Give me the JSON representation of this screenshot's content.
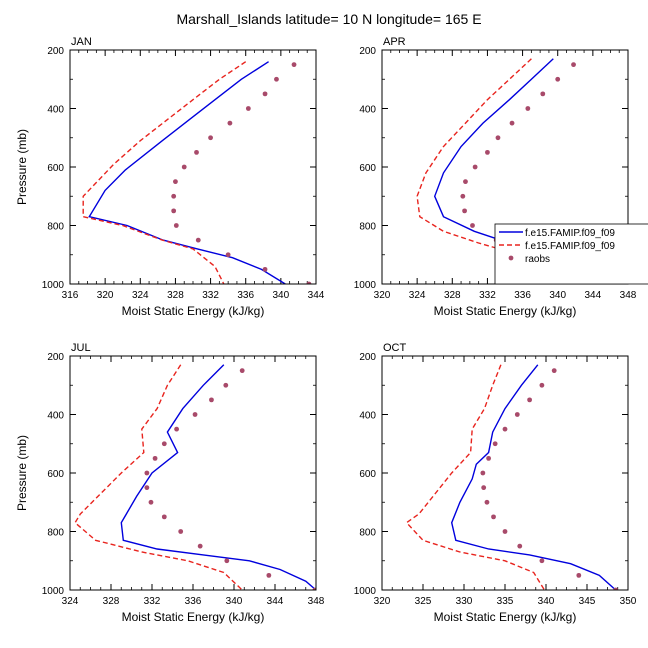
{
  "figure": {
    "title": "Marshall_Islands  latitude= 10 N longitude= 165 E"
  },
  "legend": {
    "entries": [
      {
        "label": "f.e15.FAMIP.f09_f09",
        "style": "solid",
        "color": "#0000dd"
      },
      {
        "label": "f.e15.FAMIP.f09_f09",
        "style": "dashed",
        "color": "#e8241e"
      },
      {
        "label": "raobs",
        "style": "dots",
        "color": "#a84a6a"
      }
    ]
  },
  "chart_data": [
    {
      "type": "line",
      "panel": "JAN",
      "title": "JAN",
      "xlabel": "Moist Static Energy (kJ/kg)",
      "ylabel": "Pressure (mb)",
      "xlim": [
        316,
        344
      ],
      "xticks": [
        316,
        320,
        324,
        328,
        332,
        336,
        340,
        344
      ],
      "ylim": [
        1000,
        200
      ],
      "yticks": [
        200,
        400,
        600,
        800,
        1000
      ],
      "series": [
        {
          "name": "f.e15.FAMIP.f09_f09",
          "style": "solid",
          "color": "#0000dd",
          "x": [
            338.6,
            335.5,
            332.5,
            329.5,
            326.5,
            322.3,
            320.0,
            318.2,
            322.5,
            326.6,
            330.5,
            334.5,
            337.8,
            340.5
          ],
          "y": [
            240,
            300,
            370,
            440,
            510,
            610,
            680,
            770,
            800,
            850,
            880,
            910,
            950,
            1000
          ]
        },
        {
          "name": "f.e15.FAMIP.f09_f09",
          "style": "dashed",
          "color": "#e8241e",
          "x": [
            336.0,
            333.0,
            330.0,
            327.0,
            324.0,
            321.0,
            317.5,
            317.5,
            322.0,
            326.5,
            330.0,
            332.5,
            333.5
          ],
          "y": [
            240,
            300,
            370,
            440,
            510,
            590,
            700,
            770,
            800,
            850,
            880,
            940,
            1000
          ]
        },
        {
          "name": "raobs",
          "style": "dots",
          "color": "#a84a6a",
          "x": [
            341.5,
            339.5,
            338.2,
            336.3,
            334.2,
            332.0,
            330.4,
            329.0,
            328.0,
            327.8,
            327.8,
            328.1,
            330.6,
            334.0,
            338.2,
            343.2
          ],
          "y": [
            250,
            300,
            350,
            400,
            450,
            500,
            550,
            600,
            650,
            700,
            750,
            800,
            850,
            900,
            950,
            1000
          ]
        }
      ]
    },
    {
      "type": "line",
      "panel": "APR",
      "title": "APR",
      "xlabel": "Moist Static Energy (kJ/kg)",
      "ylabel": "",
      "xlim": [
        320,
        348
      ],
      "xticks": [
        320,
        324,
        328,
        332,
        336,
        340,
        344,
        348
      ],
      "ylim": [
        1000,
        200
      ],
      "yticks": [
        200,
        400,
        600,
        800,
        1000
      ],
      "series": [
        {
          "name": "f.e15.FAMIP.f09_f09",
          "style": "solid",
          "color": "#0000dd",
          "x": [
            339.5,
            337.0,
            334.5,
            331.5,
            329.0,
            327.0,
            326.0,
            327.0,
            330.5,
            334.5,
            338.5,
            341.5,
            344.0
          ],
          "y": [
            230,
            300,
            370,
            450,
            530,
            620,
            700,
            770,
            820,
            860,
            890,
            930,
            1000
          ]
        },
        {
          "name": "f.e15.FAMIP.f09_f09",
          "style": "dashed",
          "color": "#e8241e",
          "x": [
            337.0,
            334.5,
            332.0,
            329.5,
            327.0,
            325.0,
            324.0,
            324.3,
            327.0,
            331.0,
            334.5,
            336.5,
            337.5
          ],
          "y": [
            230,
            300,
            370,
            450,
            530,
            620,
            700,
            770,
            820,
            860,
            890,
            940,
            1000
          ]
        },
        {
          "name": "raobs",
          "style": "dots",
          "color": "#a84a6a",
          "x": [
            341.8,
            340.0,
            338.3,
            336.6,
            334.8,
            333.2,
            332.0,
            330.6,
            329.5,
            329.2,
            329.4,
            330.3,
            333.0,
            337.0,
            340.5,
            345.0
          ],
          "y": [
            250,
            300,
            350,
            400,
            450,
            500,
            550,
            600,
            650,
            700,
            750,
            800,
            850,
            900,
            950,
            1000
          ]
        }
      ]
    },
    {
      "type": "line",
      "panel": "JUL",
      "title": "JUL",
      "xlabel": "Moist Static Energy (kJ/kg)",
      "ylabel": "Pressure (mb)",
      "xlim": [
        324,
        348
      ],
      "xticks": [
        324,
        328,
        332,
        336,
        340,
        344,
        348
      ],
      "ylim": [
        1000,
        200
      ],
      "yticks": [
        200,
        400,
        600,
        800,
        1000
      ],
      "series": [
        {
          "name": "f.e15.FAMIP.f09_f09",
          "style": "solid",
          "color": "#0000dd",
          "x": [
            339.0,
            337.0,
            335.0,
            333.5,
            334.5,
            332.0,
            330.5,
            329.0,
            329.2,
            332.5,
            337.0,
            341.5,
            344.5,
            347.0,
            348.0
          ],
          "y": [
            230,
            300,
            380,
            460,
            530,
            600,
            680,
            770,
            830,
            860,
            880,
            900,
            930,
            970,
            1000
          ]
        },
        {
          "name": "f.e15.FAMIP.f09_f09",
          "style": "dashed",
          "color": "#e8241e",
          "x": [
            334.8,
            333.5,
            332.5,
            331.0,
            331.2,
            329.0,
            327.0,
            325.0,
            324.5,
            326.5,
            331.0,
            335.5,
            339.0,
            340.8
          ],
          "y": [
            230,
            300,
            380,
            450,
            530,
            600,
            670,
            740,
            770,
            830,
            870,
            900,
            940,
            1000
          ]
        },
        {
          "name": "raobs",
          "style": "dots",
          "color": "#a84a6a",
          "x": [
            340.8,
            339.2,
            337.8,
            336.2,
            334.4,
            333.2,
            332.3,
            331.5,
            331.5,
            331.9,
            333.2,
            334.8,
            336.7,
            339.3,
            343.4,
            347.9
          ],
          "y": [
            250,
            300,
            350,
            400,
            450,
            500,
            550,
            600,
            650,
            700,
            750,
            800,
            850,
            900,
            950,
            1000
          ]
        }
      ]
    },
    {
      "type": "line",
      "panel": "OCT",
      "title": "OCT",
      "xlabel": "Moist Static Energy (kJ/kg)",
      "ylabel": "",
      "xlim": [
        320,
        350
      ],
      "xticks": [
        320,
        325,
        330,
        335,
        340,
        345,
        350
      ],
      "ylim": [
        1000,
        200
      ],
      "yticks": [
        200,
        400,
        600,
        800,
        1000
      ],
      "series": [
        {
          "name": "f.e15.FAMIP.f09_f09",
          "style": "solid",
          "color": "#0000dd",
          "x": [
            339.0,
            337.0,
            335.0,
            333.5,
            333.0,
            331.5,
            331.0,
            329.5,
            328.5,
            329.0,
            333.0,
            338.0,
            343.0,
            346.5,
            348.5
          ],
          "y": [
            230,
            300,
            380,
            460,
            530,
            570,
            620,
            700,
            770,
            830,
            860,
            880,
            910,
            950,
            1000
          ]
        },
        {
          "name": "f.e15.FAMIP.f09_f09",
          "style": "dashed",
          "color": "#e8241e",
          "x": [
            334.5,
            333.5,
            332.5,
            331.0,
            330.8,
            328.5,
            326.5,
            324.5,
            323.0,
            325.0,
            329.5,
            335.0,
            338.5,
            339.8
          ],
          "y": [
            230,
            300,
            380,
            450,
            530,
            600,
            670,
            740,
            770,
            830,
            870,
            900,
            940,
            1000
          ]
        },
        {
          "name": "raobs",
          "style": "dots",
          "color": "#a84a6a",
          "x": [
            341.0,
            339.5,
            338.0,
            336.5,
            335.0,
            333.8,
            333.0,
            332.3,
            332.4,
            332.8,
            333.6,
            335.0,
            336.8,
            339.5,
            344.0,
            348.5
          ],
          "y": [
            250,
            300,
            350,
            400,
            450,
            500,
            550,
            600,
            650,
            700,
            750,
            800,
            850,
            900,
            950,
            1000
          ]
        }
      ]
    }
  ]
}
